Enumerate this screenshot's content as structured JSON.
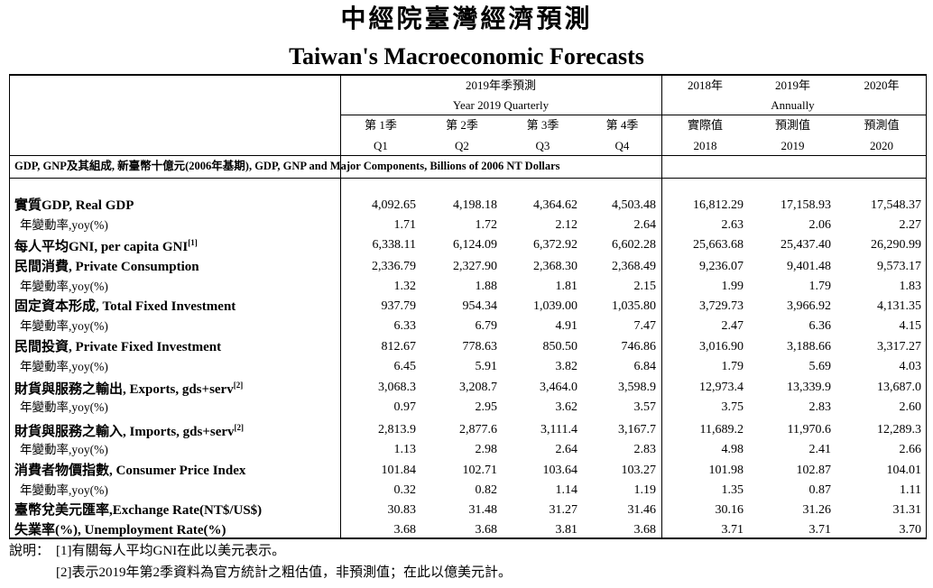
{
  "header": {
    "title_zh": "中經院臺灣經濟預測",
    "title_en": "Taiwan's Macroeconomic Forecasts"
  },
  "table": {
    "quarter_group": {
      "zh": "2019年季預測",
      "en": "Year 2019 Quarterly"
    },
    "annual_group": "Annually",
    "columns": [
      {
        "top": null,
        "zh": "第 1季",
        "en": "Q1"
      },
      {
        "top": null,
        "zh": "第 2季",
        "en": "Q2"
      },
      {
        "top": null,
        "zh": "第 3季",
        "en": "Q3"
      },
      {
        "top": null,
        "zh": "第 4季",
        "en": "Q4"
      },
      {
        "top": "2018年",
        "zh": "實際值",
        "en": "2018"
      },
      {
        "top": "2019年",
        "zh": "預測值",
        "en": "2019"
      },
      {
        "top": "2020年",
        "zh": "預測值",
        "en": "2020"
      }
    ],
    "section": "GDP, GNP及其組成, 新臺幣十億元(2006年基期), GDP, GNP and Major Components, Billions of 2006 NT Dollars",
    "rows": [
      {
        "label": "實質GDP, Real GDP",
        "note": null,
        "main": true,
        "values": [
          "4,092.65",
          "4,198.18",
          "4,364.62",
          "4,503.48",
          "16,812.29",
          "17,158.93",
          "17,548.37"
        ]
      },
      {
        "label": "年變動率,yoy(%)",
        "note": null,
        "main": false,
        "values": [
          "1.71",
          "1.72",
          "2.12",
          "2.64",
          "2.63",
          "2.06",
          "2.27"
        ]
      },
      {
        "label": "每人平均GNI, per capita GNI",
        "note": "[1]",
        "main": true,
        "values": [
          "6,338.11",
          "6,124.09",
          "6,372.92",
          "6,602.28",
          "25,663.68",
          "25,437.40",
          "26,290.99"
        ]
      },
      {
        "label": "民間消費, Private Consumption",
        "note": null,
        "main": true,
        "values": [
          "2,336.79",
          "2,327.90",
          "2,368.30",
          "2,368.49",
          "9,236.07",
          "9,401.48",
          "9,573.17"
        ]
      },
      {
        "label": "年變動率,yoy(%)",
        "note": null,
        "main": false,
        "values": [
          "1.32",
          "1.88",
          "1.81",
          "2.15",
          "1.99",
          "1.79",
          "1.83"
        ]
      },
      {
        "label": "固定資本形成, Total Fixed Investment",
        "note": null,
        "main": true,
        "values": [
          "937.79",
          "954.34",
          "1,039.00",
          "1,035.80",
          "3,729.73",
          "3,966.92",
          "4,131.35"
        ]
      },
      {
        "label": "年變動率,yoy(%)",
        "note": null,
        "main": false,
        "values": [
          "6.33",
          "6.79",
          "4.91",
          "7.47",
          "2.47",
          "6.36",
          "4.15"
        ]
      },
      {
        "label": "民間投資, Private Fixed Investment",
        "note": null,
        "main": true,
        "values": [
          "812.67",
          "778.63",
          "850.50",
          "746.86",
          "3,016.90",
          "3,188.66",
          "3,317.27"
        ]
      },
      {
        "label": "年變動率,yoy(%)",
        "note": null,
        "main": false,
        "values": [
          "6.45",
          "5.91",
          "3.82",
          "6.84",
          "1.79",
          "5.69",
          "4.03"
        ]
      },
      {
        "label": "財貨與服務之輸出, Exports, gds+serv",
        "note": "[2]",
        "main": true,
        "values": [
          "3,068.3",
          "3,208.7",
          "3,464.0",
          "3,598.9",
          "12,973.4",
          "13,339.9",
          "13,687.0"
        ]
      },
      {
        "label": "年變動率,yoy(%)",
        "note": null,
        "main": false,
        "values": [
          "0.97",
          "2.95",
          "3.62",
          "3.57",
          "3.75",
          "2.83",
          "2.60"
        ]
      },
      {
        "label": "財貨與服務之輸入, Imports, gds+serv",
        "note": "[2]",
        "main": true,
        "values": [
          "2,813.9",
          "2,877.6",
          "3,111.4",
          "3,167.7",
          "11,689.2",
          "11,970.6",
          "12,289.3"
        ]
      },
      {
        "label": "年變動率,yoy(%)",
        "note": null,
        "main": false,
        "values": [
          "1.13",
          "2.98",
          "2.64",
          "2.83",
          "4.98",
          "2.41",
          "2.66"
        ]
      },
      {
        "label": "消費者物價指數, Consumer Price Index",
        "note": null,
        "main": true,
        "values": [
          "101.84",
          "102.71",
          "103.64",
          "103.27",
          "101.98",
          "102.87",
          "104.01"
        ]
      },
      {
        "label": "年變動率,yoy(%)",
        "note": null,
        "main": false,
        "values": [
          "0.32",
          "0.82",
          "1.14",
          "1.19",
          "1.35",
          "0.87",
          "1.11"
        ]
      },
      {
        "label": "臺幣兌美元匯率,Exchange Rate(NT$/US$)",
        "note": null,
        "main": true,
        "values": [
          "30.83",
          "31.48",
          "31.27",
          "31.46",
          "30.16",
          "31.26",
          "31.31"
        ]
      },
      {
        "label": "失業率(%), Unemployment Rate(%)",
        "note": null,
        "main": true,
        "values": [
          "3.68",
          "3.68",
          "3.81",
          "3.68",
          "3.71",
          "3.71",
          "3.70"
        ]
      }
    ]
  },
  "notes": {
    "prefix": "說明：",
    "items": [
      "[1]有關每人平均GNI在此以美元表示。",
      "[2]表示2019年第2季資料為官方統計之粗估值，非預測值；在此以億美元計。"
    ]
  }
}
